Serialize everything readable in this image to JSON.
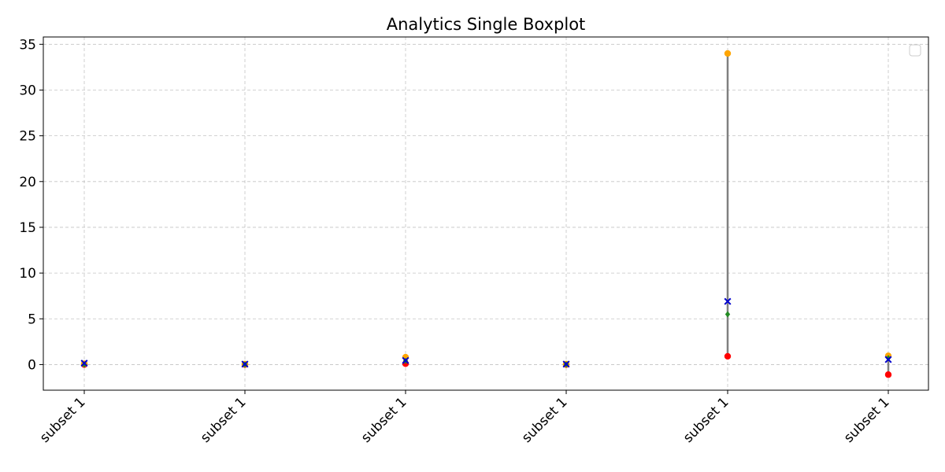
{
  "chart_data": {
    "type": "boxplot-range",
    "title": "Analytics Single Boxplot",
    "categories": [
      "subset 1",
      "subset 1",
      "subset 1",
      "subset 1",
      "subset 1",
      "subset 1"
    ],
    "yticks": [
      0,
      5,
      10,
      15,
      20,
      25,
      30,
      35
    ],
    "ylim": [
      -2.8,
      35.8
    ],
    "grid": true,
    "legend": {
      "placement": "top-right",
      "entries": []
    },
    "colors": {
      "min": "#ff0000",
      "max": "#ffa500",
      "mean": "#0000cd",
      "median": "#228b22",
      "range": "#808080"
    },
    "points": [
      {
        "min": 0.0,
        "max": 0.1,
        "mean": 0.15,
        "median": 0.0
      },
      {
        "min": 0.0,
        "max": 0.05,
        "mean": 0.05,
        "median": 0.0
      },
      {
        "min": 0.1,
        "max": 0.8,
        "mean": 0.45,
        "median": 0.4
      },
      {
        "min": 0.0,
        "max": 0.05,
        "mean": 0.05,
        "median": 0.0
      },
      {
        "min": 0.9,
        "max": 34.0,
        "mean": 6.9,
        "median": 5.5
      },
      {
        "min": -1.1,
        "max": 0.95,
        "mean": 0.55,
        "median": 0.7
      }
    ]
  }
}
